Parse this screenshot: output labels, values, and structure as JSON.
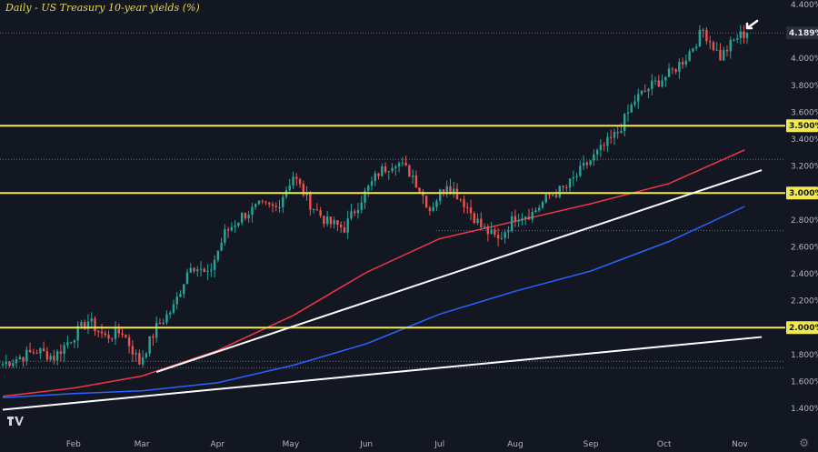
{
  "title": "Daily - US Treasury 10-year yields (%)",
  "colors": {
    "background": "#131722",
    "up": "#26a69a",
    "down": "#ef5350",
    "ma_fast": "#f23645",
    "ma_slow": "#2962ff",
    "horizontal_levels": "#f2e94e",
    "trendlines": "#ffffff",
    "axis_text": "#b2b5be"
  },
  "chart_data": {
    "type": "candlestick",
    "title": "Daily - US Treasury 10-year yields (%)",
    "xlabel": "",
    "ylabel": "",
    "ylim": [
      1.35,
      4.43
    ],
    "y_ticks": [
      "1.400%",
      "1.600%",
      "1.800%",
      "2.000%",
      "2.200%",
      "2.400%",
      "2.600%",
      "2.800%",
      "3.000%",
      "3.200%",
      "3.400%",
      "3.600%",
      "3.800%",
      "4.000%",
      "4.200%",
      "4.400%"
    ],
    "x_ticks": [
      "Feb",
      "Mar",
      "Apr",
      "May",
      "Jun",
      "Jul",
      "Aug",
      "Sep",
      "Oct",
      "Nov"
    ],
    "price_labels": [
      {
        "label": "4.189%",
        "value": 4.189,
        "color": "#2a2e39"
      },
      {
        "label": "3.500%",
        "value": 3.5,
        "color": "#f2e94e"
      },
      {
        "label": "3.000%",
        "value": 3.0,
        "color": "#f2e94e"
      },
      {
        "label": "2.000%",
        "value": 2.0,
        "color": "#f2e94e"
      }
    ],
    "horizontal_levels": [
      3.5,
      3.0,
      2.0
    ],
    "dotted_levels": [
      4.189,
      3.25,
      2.72,
      1.75,
      1.7
    ],
    "trendlines": [
      {
        "start": [
          "2022-01-03",
          1.39
        ],
        "end": [
          "2022-11-10",
          1.93
        ]
      },
      {
        "start": [
          "2022-03-07",
          1.67
        ],
        "end": [
          "2022-11-10",
          3.17
        ]
      }
    ],
    "series": [
      {
        "name": "",
        "kind": "sma",
        "color": "#f23645",
        "points": [
          [
            "2022-01-03",
            1.49
          ],
          [
            "2022-02-01",
            1.55
          ],
          [
            "2022-03-01",
            1.64
          ],
          [
            "2022-04-01",
            1.83
          ],
          [
            "2022-05-02",
            2.09
          ],
          [
            "2022-06-01",
            2.41
          ],
          [
            "2022-07-01",
            2.66
          ],
          [
            "2022-08-01",
            2.79
          ],
          [
            "2022-09-01",
            2.92
          ],
          [
            "2022-10-03",
            3.07
          ],
          [
            "2022-11-03",
            3.32
          ]
        ]
      },
      {
        "name": "",
        "kind": "sma",
        "color": "#2962ff",
        "points": [
          [
            "2022-01-03",
            1.48
          ],
          [
            "2022-02-01",
            1.51
          ],
          [
            "2022-03-01",
            1.53
          ],
          [
            "2022-04-01",
            1.59
          ],
          [
            "2022-05-02",
            1.72
          ],
          [
            "2022-06-01",
            1.88
          ],
          [
            "2022-07-01",
            2.1
          ],
          [
            "2022-08-01",
            2.27
          ],
          [
            "2022-09-01",
            2.42
          ],
          [
            "2022-10-03",
            2.64
          ],
          [
            "2022-11-03",
            2.9
          ]
        ]
      }
    ],
    "candles_weekly_close_path": [
      [
        "2022-01-03",
        1.73
      ],
      [
        "2022-01-10",
        1.78
      ],
      [
        "2022-01-17",
        1.83
      ],
      [
        "2022-01-24",
        1.78
      ],
      [
        "2022-01-31",
        1.92
      ],
      [
        "2022-02-07",
        2.05
      ],
      [
        "2022-02-14",
        1.93
      ],
      [
        "2022-02-21",
        1.97
      ],
      [
        "2022-02-28",
        1.74
      ],
      [
        "2022-03-07",
        2.0
      ],
      [
        "2022-03-14",
        2.15
      ],
      [
        "2022-03-21",
        2.48
      ],
      [
        "2022-03-28",
        2.38
      ],
      [
        "2022-04-04",
        2.7
      ],
      [
        "2022-04-11",
        2.83
      ],
      [
        "2022-04-18",
        2.9
      ],
      [
        "2022-04-25",
        2.89
      ],
      [
        "2022-05-02",
        3.13
      ],
      [
        "2022-05-09",
        2.92
      ],
      [
        "2022-05-16",
        2.78
      ],
      [
        "2022-05-23",
        2.74
      ],
      [
        "2022-05-30",
        2.96
      ],
      [
        "2022-06-06",
        3.15
      ],
      [
        "2022-06-13",
        3.24
      ],
      [
        "2022-06-20",
        3.13
      ],
      [
        "2022-06-27",
        2.88
      ],
      [
        "2022-07-04",
        3.08
      ],
      [
        "2022-07-11",
        2.93
      ],
      [
        "2022-07-18",
        2.75
      ],
      [
        "2022-07-25",
        2.65
      ],
      [
        "2022-08-01",
        2.83
      ],
      [
        "2022-08-08",
        2.85
      ],
      [
        "2022-08-15",
        2.98
      ],
      [
        "2022-08-22",
        3.04
      ],
      [
        "2022-08-29",
        3.19
      ],
      [
        "2022-09-05",
        3.32
      ],
      [
        "2022-09-12",
        3.45
      ],
      [
        "2022-09-19",
        3.69
      ],
      [
        "2022-09-26",
        3.8
      ],
      [
        "2022-10-03",
        3.88
      ],
      [
        "2022-10-10",
        4.01
      ],
      [
        "2022-10-17",
        4.21
      ],
      [
        "2022-10-24",
        4.01
      ],
      [
        "2022-10-31",
        4.16
      ],
      [
        "2022-11-04",
        4.19
      ]
    ],
    "grid": false,
    "legend": "none",
    "annotations": [
      "arrow pointing to latest candle"
    ]
  }
}
